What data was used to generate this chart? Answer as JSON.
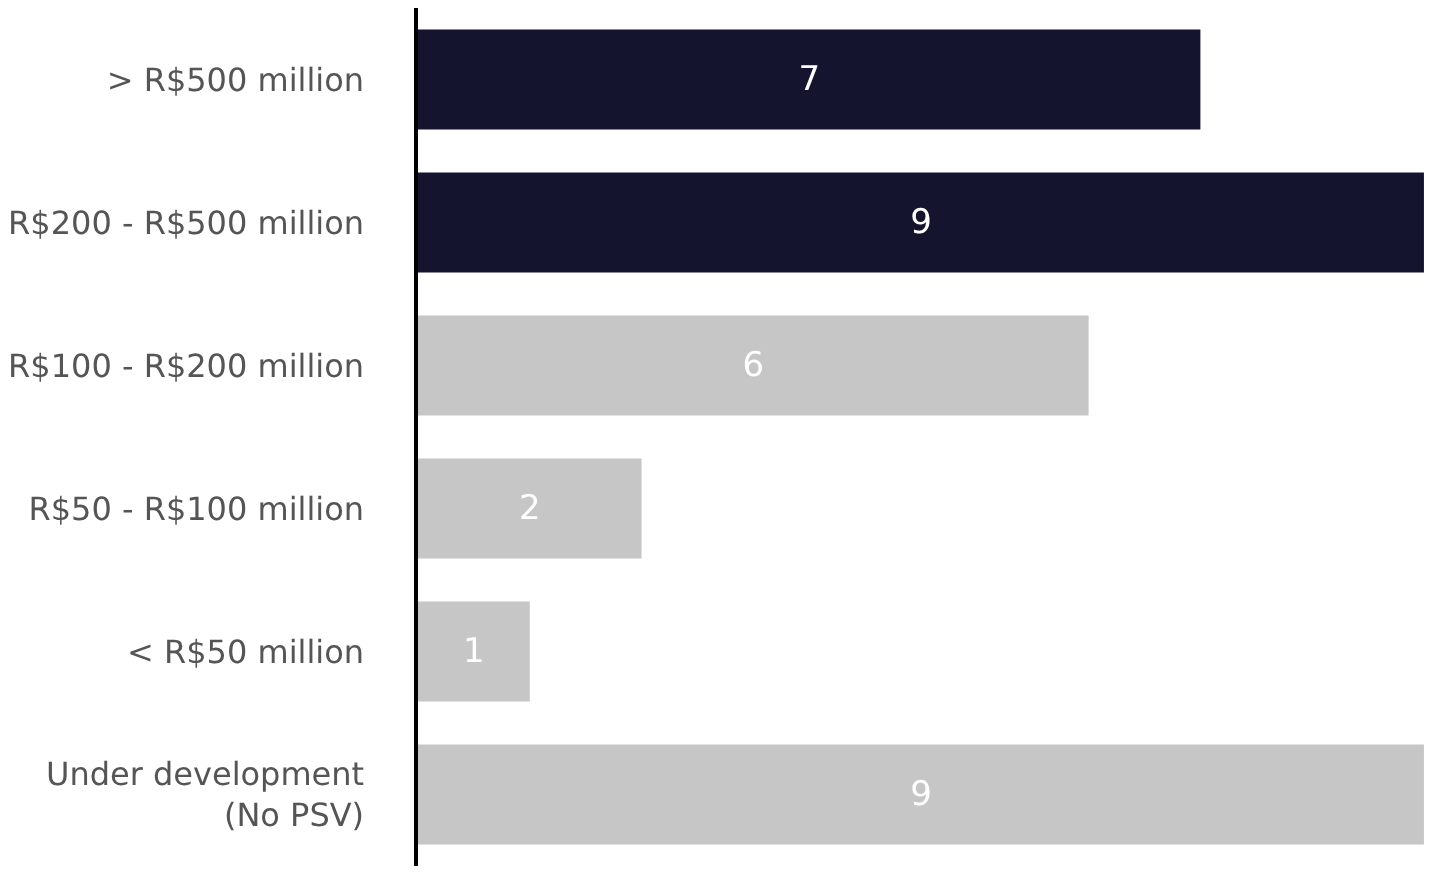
{
  "chart_data": {
    "type": "bar",
    "orientation": "horizontal",
    "categories": [
      "> R$500 million",
      "R$200 - R$500 million",
      "R$100 - R$200 million",
      "R$50 - R$100 million",
      "< R$50 million",
      "Under development\n(No PSV)"
    ],
    "values": [
      7,
      9,
      6,
      2,
      1,
      9
    ],
    "colors": [
      "#14142f",
      "#14142f",
      "#c6c6c6",
      "#c6c6c6",
      "#c6c6c6",
      "#c6c6c6"
    ],
    "data_labels": true,
    "legend": false
  }
}
